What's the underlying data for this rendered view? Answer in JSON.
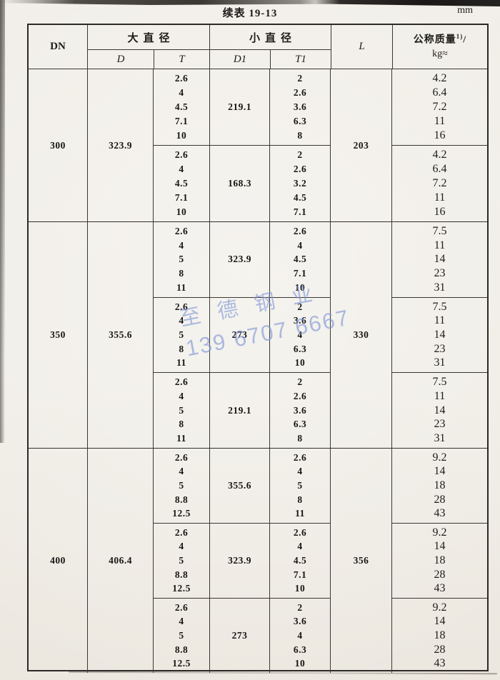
{
  "page": {
    "caption": "续表 19-13",
    "unit": "mm"
  },
  "watermark": {
    "name": "至德钢业",
    "phone": "139 6707 6667",
    "color": "#7e96d6"
  },
  "table": {
    "headers": {
      "dn": "DN",
      "big_dia": "大直径",
      "small_dia": "小直径",
      "d": "D",
      "t": "T",
      "d1_main": "D",
      "d1_sub": "1",
      "t1_main": "T",
      "t1_sub": "1",
      "l": "L",
      "mass_main": "公称质量",
      "mass_sup": "1)",
      "mass_slash": "/",
      "mass_unit": "kg≈"
    },
    "sections": [
      {
        "dn": "300",
        "d": "323.9",
        "l": "203",
        "groups": [
          {
            "t": [
              "2.6",
              "4",
              "4.5",
              "7.1",
              "10"
            ],
            "d1": "219.1",
            "t1": [
              "2",
              "2.6",
              "3.6",
              "6.3",
              "8"
            ],
            "kg": [
              "4.2",
              "6.4",
              "7.2",
              "11",
              "16"
            ]
          },
          {
            "t": [
              "2.6",
              "4",
              "4.5",
              "7.1",
              "10"
            ],
            "d1": "168.3",
            "t1": [
              "2",
              "2.6",
              "3.2",
              "4.5",
              "7.1"
            ],
            "kg": [
              "4.2",
              "6.4",
              "7.2",
              "11",
              "16"
            ]
          }
        ]
      },
      {
        "dn": "350",
        "d": "355.6",
        "l": "330",
        "groups": [
          {
            "t": [
              "2.6",
              "4",
              "5",
              "8",
              "11"
            ],
            "d1": "323.9",
            "t1": [
              "2.6",
              "4",
              "4.5",
              "7.1",
              "10"
            ],
            "kg": [
              "7.5",
              "11",
              "14",
              "23",
              "31"
            ]
          },
          {
            "t": [
              "2.6",
              "4",
              "5",
              "8",
              "11"
            ],
            "d1": "273",
            "t1": [
              "2",
              "3.6",
              "4",
              "6.3",
              "10"
            ],
            "kg": [
              "7.5",
              "11",
              "14",
              "23",
              "31"
            ]
          },
          {
            "t": [
              "2.6",
              "4",
              "5",
              "8",
              "11"
            ],
            "d1": "219.1",
            "t1": [
              "2",
              "2.6",
              "3.6",
              "6.3",
              "8"
            ],
            "kg": [
              "7.5",
              "11",
              "14",
              "23",
              "31"
            ]
          }
        ]
      },
      {
        "dn": "400",
        "d": "406.4",
        "l": "356",
        "groups": [
          {
            "t": [
              "2.6",
              "4",
              "5",
              "8.8",
              "12.5"
            ],
            "d1": "355.6",
            "t1": [
              "2.6",
              "4",
              "5",
              "8",
              "11"
            ],
            "kg": [
              "9.2",
              "14",
              "18",
              "28",
              "43"
            ]
          },
          {
            "t": [
              "2.6",
              "4",
              "5",
              "8.8",
              "12.5"
            ],
            "d1": "323.9",
            "t1": [
              "2.6",
              "4",
              "4.5",
              "7.1",
              "10"
            ],
            "kg": [
              "9.2",
              "14",
              "18",
              "28",
              "43"
            ]
          },
          {
            "t": [
              "2.6",
              "4",
              "5",
              "8.8",
              "12.5"
            ],
            "d1": "273",
            "t1": [
              "2",
              "3.6",
              "4",
              "6.3",
              "10"
            ],
            "kg": [
              "9.2",
              "14",
              "18",
              "28",
              "43"
            ]
          }
        ]
      }
    ]
  }
}
